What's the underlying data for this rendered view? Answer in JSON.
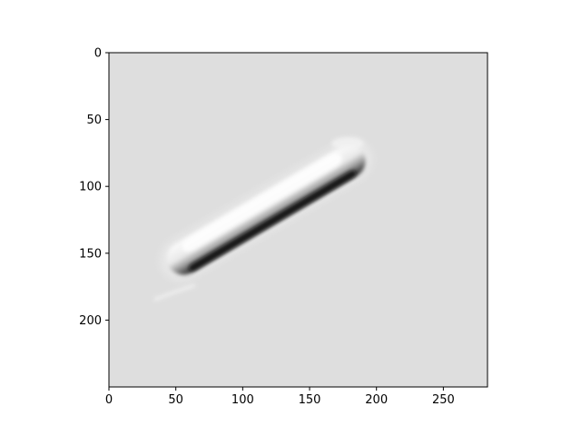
{
  "figure": {
    "type": "image-plot",
    "subject": "grayscale microscopy image of an elongated cell",
    "colors": {
      "image_background": "#dedede",
      "cell_highlight": "#fbfbfb",
      "cell_shadow": "#1e1e1e",
      "axes_frame": "#000000",
      "page_background": "#ffffff"
    }
  },
  "chart_data": {
    "type": "heatmap",
    "title": "",
    "xlabel": "",
    "ylabel": "",
    "xlim": [
      0,
      283
    ],
    "ylim": [
      250,
      0
    ],
    "y_axis_inverted": true,
    "grid": false,
    "x_ticks": [
      {
        "value": 0,
        "label": "0"
      },
      {
        "value": 50,
        "label": "50"
      },
      {
        "value": 100,
        "label": "100"
      },
      {
        "value": 150,
        "label": "150"
      },
      {
        "value": 200,
        "label": "200"
      },
      {
        "value": 250,
        "label": "250"
      }
    ],
    "y_ticks": [
      {
        "value": 0,
        "label": "0"
      },
      {
        "value": 50,
        "label": "50"
      },
      {
        "value": 100,
        "label": "100"
      },
      {
        "value": 150,
        "label": "150"
      },
      {
        "value": 200,
        "label": "200"
      }
    ],
    "cell": {
      "head": {
        "x": 45,
        "y": 160
      },
      "tail": {
        "x": 190,
        "y": 75
      }
    }
  }
}
